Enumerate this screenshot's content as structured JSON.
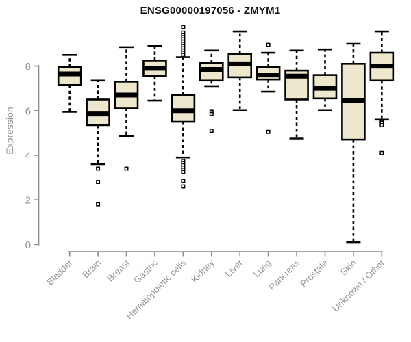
{
  "chart_data": {
    "type": "boxplot",
    "title": "ENSG00000197056 - ZMYM1",
    "xlabel": "",
    "ylabel": "Expression",
    "ylim": [
      0,
      9.9
    ],
    "yticks": [
      0,
      2,
      4,
      6,
      8
    ],
    "grid": false,
    "legend": "none",
    "colors": {
      "box_fill": "#ede8cd",
      "box_border": "#000000",
      "median": "#000000",
      "axis": "#8a8a8a",
      "tick_label": "#959595",
      "title": "#141414",
      "background": "#ffffff"
    },
    "categories": [
      "Bladder",
      "Brain",
      "Breast",
      "Gastric",
      "Hematopoietic cells",
      "Kidney",
      "Liver",
      "Lung",
      "Pancreas",
      "Prostate",
      "Skin",
      "Unknown / Other"
    ],
    "series": [
      {
        "category": "Bladder",
        "low": 5.95,
        "q1": 7.15,
        "median": 7.65,
        "q3": 7.95,
        "high": 8.5,
        "outliers": []
      },
      {
        "category": "Brain",
        "low": 3.6,
        "q1": 5.35,
        "median": 5.85,
        "q3": 6.5,
        "high": 7.35,
        "outliers": [
          3.4,
          2.8,
          1.8
        ]
      },
      {
        "category": "Breast",
        "low": 4.85,
        "q1": 6.1,
        "median": 6.7,
        "q3": 7.3,
        "high": 8.85,
        "outliers": [
          3.4
        ]
      },
      {
        "category": "Gastric",
        "low": 6.45,
        "q1": 7.55,
        "median": 7.9,
        "q3": 8.25,
        "high": 8.9,
        "outliers": []
      },
      {
        "category": "Hematopoietic cells",
        "low": 3.9,
        "q1": 5.5,
        "median": 6.0,
        "q3": 6.7,
        "high": 8.4,
        "outliers": [
          9.75,
          9.5,
          9.4,
          9.3,
          9.2,
          9.1,
          9.0,
          8.9,
          8.8,
          8.7,
          8.6,
          8.5,
          3.75,
          3.65,
          3.55,
          3.45,
          3.35,
          3.25,
          2.85,
          2.6
        ]
      },
      {
        "category": "Kidney",
        "low": 7.1,
        "q1": 7.35,
        "median": 7.85,
        "q3": 8.15,
        "high": 8.7,
        "outliers": [
          5.95,
          5.85,
          5.1
        ]
      },
      {
        "category": "Liver",
        "low": 6.0,
        "q1": 7.5,
        "median": 8.1,
        "q3": 8.55,
        "high": 9.55,
        "outliers": []
      },
      {
        "category": "Lung",
        "low": 6.85,
        "q1": 7.4,
        "median": 7.6,
        "q3": 7.95,
        "high": 8.6,
        "outliers": [
          8.95,
          5.05
        ]
      },
      {
        "category": "Pancreas",
        "low": 4.75,
        "q1": 6.5,
        "median": 7.55,
        "q3": 7.8,
        "high": 8.7,
        "outliers": []
      },
      {
        "category": "Prostate",
        "low": 6.0,
        "q1": 6.55,
        "median": 7.0,
        "q3": 7.6,
        "high": 8.75,
        "outliers": []
      },
      {
        "category": "Skin",
        "low": 0.1,
        "q1": 4.7,
        "median": 6.45,
        "q3": 8.1,
        "high": 9.0,
        "outliers": []
      },
      {
        "category": "Unknown / Other",
        "low": 5.6,
        "q1": 7.35,
        "median": 8.0,
        "q3": 8.6,
        "high": 9.55,
        "outliers": [
          5.5,
          5.45,
          5.35,
          4.1
        ]
      }
    ]
  }
}
